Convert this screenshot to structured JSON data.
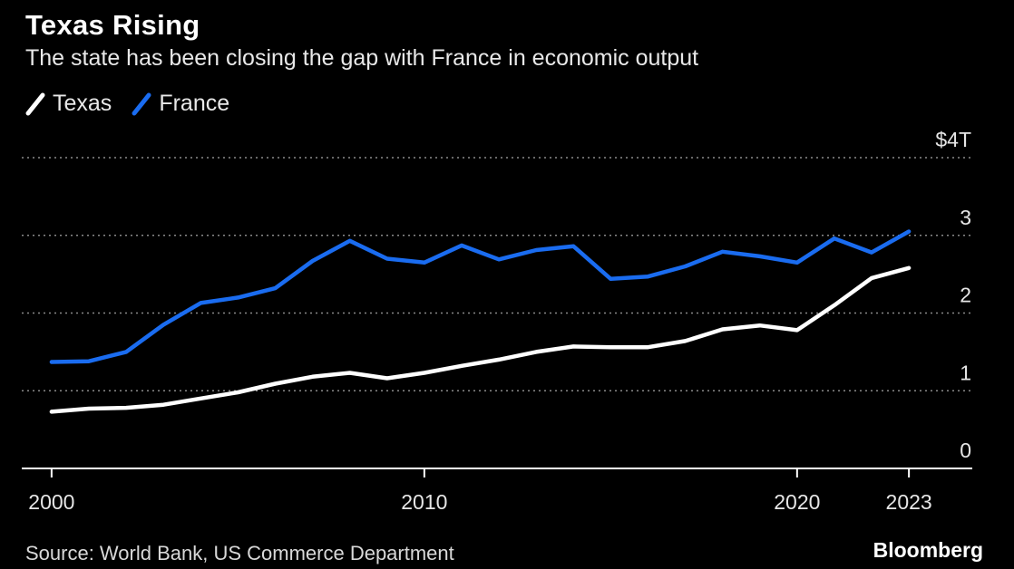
{
  "chart_data": {
    "type": "line",
    "title": "Texas Rising",
    "subtitle": "The state has been closing the gap with France in economic output",
    "x": [
      2000,
      2001,
      2002,
      2003,
      2004,
      2005,
      2006,
      2007,
      2008,
      2009,
      2010,
      2011,
      2012,
      2013,
      2014,
      2015,
      2016,
      2017,
      2018,
      2019,
      2020,
      2021,
      2022,
      2023
    ],
    "series": [
      {
        "name": "Texas",
        "color": "#ffffff",
        "values": [
          0.73,
          0.77,
          0.78,
          0.82,
          0.9,
          0.98,
          1.09,
          1.18,
          1.23,
          1.16,
          1.23,
          1.32,
          1.4,
          1.5,
          1.57,
          1.56,
          1.56,
          1.64,
          1.79,
          1.84,
          1.78,
          2.1,
          2.45,
          2.58
        ]
      },
      {
        "name": "France",
        "color": "#1a6cf0",
        "values": [
          1.37,
          1.38,
          1.5,
          1.85,
          2.13,
          2.2,
          2.32,
          2.67,
          2.93,
          2.7,
          2.65,
          2.87,
          2.69,
          2.81,
          2.86,
          2.44,
          2.47,
          2.6,
          2.79,
          2.73,
          2.65,
          2.96,
          2.78,
          3.05
        ]
      }
    ],
    "ylim": [
      0,
      4
    ],
    "xlim": [
      1999.2,
      2024.7
    ],
    "y_ticks": [
      {
        "value": 4,
        "label": "$4T"
      },
      {
        "value": 3,
        "label": "3"
      },
      {
        "value": 2,
        "label": "2"
      },
      {
        "value": 1,
        "label": "1"
      },
      {
        "value": 0,
        "label": "0"
      }
    ],
    "x_ticks": [
      {
        "value": 2000,
        "label": "2000"
      },
      {
        "value": 2010,
        "label": "2010"
      },
      {
        "value": 2020,
        "label": "2020"
      },
      {
        "value": 2023,
        "label": "2023"
      }
    ],
    "legend_position": "top-left",
    "grid": "horizontal-dotted",
    "source": "Source: World Bank, US Commerce Department",
    "brand": "Bloomberg"
  }
}
